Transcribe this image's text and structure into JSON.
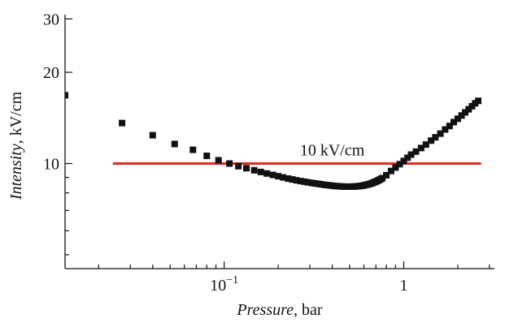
{
  "chart_data": {
    "type": "scatter",
    "title": "",
    "xlabel_italic": "Pressure",
    "xlabel_unit": ", bar",
    "ylabel_italic": "Intensity",
    "ylabel_unit": ", kV/cm",
    "xscale": "log",
    "yscale": "log",
    "xlim": [
      0.013,
      3.2
    ],
    "ylim": [
      4.5,
      31
    ],
    "grid": false,
    "legend": "none",
    "x_ticks": [
      {
        "value": 0.1,
        "base": "10",
        "exp": "−1"
      },
      {
        "value": 1,
        "label": "1"
      }
    ],
    "y_ticks": [
      {
        "value": 10,
        "label": "10"
      },
      {
        "value": 20,
        "label": "20"
      },
      {
        "value": 30,
        "label": "30"
      }
    ],
    "colors": {
      "points": "#111111",
      "reference_line": "#e8291c",
      "axes": "#111111"
    },
    "reference_line": {
      "y": 10,
      "x_range": [
        0.024,
        2.7
      ],
      "label": "10 kV/cm",
      "label_x": 0.4
    },
    "series": [
      {
        "marker": "square",
        "x": [
          0.013,
          0.027,
          0.04,
          0.053,
          0.067,
          0.08,
          0.093,
          0.107,
          0.12,
          0.133,
          0.147,
          0.16,
          0.173,
          0.187,
          0.2,
          0.213,
          0.227,
          0.24,
          0.253,
          0.267,
          0.28,
          0.293,
          0.307,
          0.32,
          0.333,
          0.347,
          0.36,
          0.373,
          0.387,
          0.4,
          0.413,
          0.427,
          0.44,
          0.453,
          0.467,
          0.48,
          0.493,
          0.507,
          0.52,
          0.533,
          0.547,
          0.56,
          0.573,
          0.587,
          0.6,
          0.613,
          0.627,
          0.64,
          0.653,
          0.667,
          0.68,
          0.693,
          0.707,
          0.72,
          0.733,
          0.747,
          0.76,
          0.8,
          0.85,
          0.9,
          0.95,
          1.0,
          1.05,
          1.1,
          1.17,
          1.25,
          1.33,
          1.42,
          1.5,
          1.6,
          1.7,
          1.8,
          1.9,
          2.0,
          2.1,
          2.2,
          2.3,
          2.4,
          2.5,
          2.6
        ],
        "y": [
          16.8,
          13.6,
          12.4,
          11.6,
          11.1,
          10.6,
          10.25,
          10.0,
          9.8,
          9.65,
          9.5,
          9.38,
          9.27,
          9.17,
          9.08,
          9.0,
          8.92,
          8.86,
          8.8,
          8.75,
          8.71,
          8.67,
          8.63,
          8.6,
          8.57,
          8.54,
          8.51,
          8.49,
          8.47,
          8.45,
          8.43,
          8.42,
          8.41,
          8.4,
          8.39,
          8.39,
          8.39,
          8.39,
          8.39,
          8.4,
          8.41,
          8.42,
          8.43,
          8.45,
          8.47,
          8.5,
          8.52,
          8.55,
          8.58,
          8.62,
          8.66,
          8.7,
          8.74,
          8.79,
          8.84,
          8.89,
          8.95,
          9.15,
          9.45,
          9.7,
          9.95,
          10.2,
          10.45,
          10.7,
          10.95,
          11.25,
          11.55,
          11.9,
          12.2,
          12.55,
          12.95,
          13.3,
          13.7,
          14.05,
          14.4,
          14.75,
          15.1,
          15.45,
          15.8,
          16.1
        ]
      }
    ]
  }
}
